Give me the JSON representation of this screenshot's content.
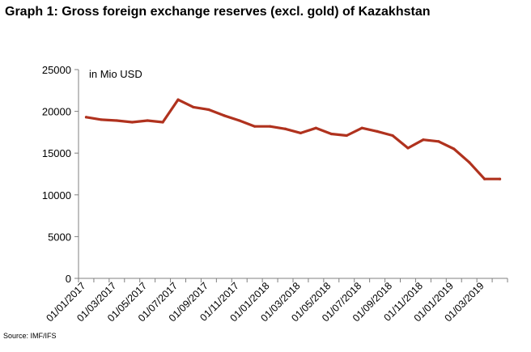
{
  "title": "Graph 1: Gross foreign exchange reserves (excl. gold) of Kazakhstan",
  "source": "Source: IMF/IFS",
  "colors": {
    "line": "#b0321e",
    "axis": "#808080",
    "text": "#000000"
  },
  "chart_data": {
    "type": "line",
    "title": "Graph 1: Gross foreign exchange reserves (excl. gold) of Kazakhstan",
    "unit_label": "in Mio USD",
    "xlabel": "",
    "ylabel": "",
    "ylim": [
      0,
      25000
    ],
    "yticks": [
      0,
      5000,
      10000,
      15000,
      20000,
      25000
    ],
    "grid": false,
    "legend": "none",
    "x": [
      "01/01/2017",
      "01/02/2017",
      "01/03/2017",
      "01/04/2017",
      "01/05/2017",
      "01/06/2017",
      "01/07/2017",
      "01/08/2017",
      "01/09/2017",
      "01/10/2017",
      "01/11/2017",
      "01/12/2017",
      "01/01/2018",
      "01/02/2018",
      "01/03/2018",
      "01/04/2018",
      "01/05/2018",
      "01/06/2018",
      "01/07/2018",
      "01/08/2018",
      "01/09/2018",
      "01/10/2018",
      "01/11/2018",
      "01/12/2018",
      "01/01/2019",
      "01/02/2019",
      "01/03/2019",
      "01/04/2019"
    ],
    "xtick_labels": [
      "01/01/2017",
      "01/03/2017",
      "01/05/2017",
      "01/07/2017",
      "01/09/2017",
      "01/11/2017",
      "01/01/2018",
      "01/03/2018",
      "01/05/2018",
      "01/07/2018",
      "01/09/2018",
      "01/11/2018",
      "01/01/2019",
      "01/03/2019"
    ],
    "series": [
      {
        "values": [
          19300,
          19000,
          18900,
          18700,
          18900,
          18700,
          21400,
          20500,
          20200,
          19500,
          18900,
          18200,
          18200,
          17900,
          17400,
          18000,
          17300,
          17100,
          18000,
          17600,
          17100,
          15600,
          16600,
          16400,
          15500,
          13900,
          11900,
          11900
        ]
      }
    ]
  }
}
